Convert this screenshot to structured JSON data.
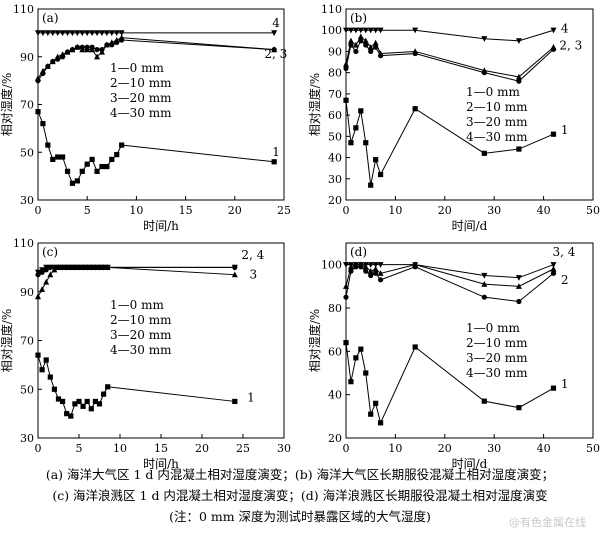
{
  "chart_data": [
    {
      "type": "line",
      "panel_label": "(a)",
      "xlabel": "时间/h",
      "ylabel": "相对湿度/%",
      "xlim": [
        0,
        25
      ],
      "ylim": [
        30,
        110
      ],
      "xticks": [
        0,
        5,
        10,
        15,
        20,
        25
      ],
      "yticks": [
        30,
        50,
        70,
        90,
        110
      ],
      "legend": [
        "1—0 mm",
        "2—10 mm",
        "3—20 mm",
        "4—30 mm"
      ],
      "series": [
        {
          "name": "1",
          "marker": "square",
          "x": [
            0,
            0.5,
            1,
            1.5,
            2,
            2.5,
            3,
            3.5,
            4,
            4.5,
            5,
            5.5,
            6,
            6.5,
            7,
            7.5,
            8,
            8.5,
            24
          ],
          "y": [
            67,
            62,
            53,
            47,
            48,
            48,
            42,
            37,
            38,
            42,
            45,
            47,
            42,
            44,
            44,
            47,
            49,
            53,
            46
          ]
        },
        {
          "name": "2",
          "marker": "circle",
          "x": [
            0,
            0.5,
            1,
            1.5,
            2,
            2.5,
            3,
            3.5,
            4,
            4.5,
            5,
            5.5,
            6,
            6.5,
            7,
            7.5,
            8,
            8.5,
            24
          ],
          "y": [
            80,
            83,
            86,
            88,
            89,
            90,
            92,
            93,
            94,
            94,
            94,
            94,
            93,
            93,
            95,
            95,
            96,
            97,
            93
          ]
        },
        {
          "name": "3",
          "marker": "triangle-up",
          "x": [
            0,
            0.5,
            1,
            1.5,
            2,
            2.5,
            3,
            3.5,
            4,
            4.5,
            5,
            5.5,
            6,
            6.5,
            7,
            7.5,
            8,
            8.5,
            24
          ],
          "y": [
            81,
            84,
            86,
            88,
            90,
            91,
            92,
            93,
            94,
            93,
            93,
            93,
            90,
            92,
            95,
            96,
            97,
            98,
            93
          ]
        },
        {
          "name": "4",
          "marker": "triangle-down",
          "x": [
            0,
            0.5,
            1,
            1.5,
            2,
            2.5,
            3,
            3.5,
            4,
            4.5,
            5,
            5.5,
            6,
            6.5,
            7,
            7.5,
            8,
            8.5,
            24
          ],
          "y": [
            100,
            100,
            100,
            100,
            100,
            100,
            100,
            100,
            100,
            100,
            100,
            100,
            100,
            100,
            100,
            100,
            100,
            100,
            100
          ]
        }
      ],
      "curve_labels": [
        {
          "text": "4",
          "x": 23.8,
          "y": 102.5
        },
        {
          "text": "2, 3",
          "x": 23.0,
          "y": 89.5
        },
        {
          "text": "1",
          "x": 23.8,
          "y": 48.5
        }
      ]
    },
    {
      "type": "line",
      "panel_label": "(b)",
      "xlabel": "时间/d",
      "ylabel": "相对湿度/%",
      "xlim": [
        0,
        50
      ],
      "ylim": [
        20,
        110
      ],
      "xticks": [
        0,
        10,
        20,
        30,
        40,
        50
      ],
      "yticks": [
        20,
        30,
        40,
        50,
        60,
        70,
        80,
        90,
        100,
        110
      ],
      "legend": [
        "1—0 mm",
        "2—10 mm",
        "3—20 mm",
        "4—30 mm"
      ],
      "series": [
        {
          "name": "1",
          "marker": "square",
          "x": [
            0,
            1,
            2,
            3,
            4,
            5,
            6,
            7,
            14,
            28,
            35,
            42
          ],
          "y": [
            67,
            47,
            54,
            62,
            47,
            27,
            39,
            32,
            63,
            42,
            44,
            51
          ]
        },
        {
          "name": "2",
          "marker": "circle",
          "x": [
            0,
            1,
            2,
            3,
            4,
            5,
            6,
            7,
            14,
            28,
            35,
            42
          ],
          "y": [
            82,
            93,
            90,
            95,
            93,
            90,
            92,
            88,
            89,
            80,
            76,
            91
          ]
        },
        {
          "name": "3",
          "marker": "triangle-up",
          "x": [
            0,
            1,
            2,
            3,
            4,
            5,
            6,
            7,
            14,
            28,
            35,
            42
          ],
          "y": [
            84,
            95,
            93,
            97,
            95,
            92,
            94,
            89,
            90,
            81,
            78,
            92
          ]
        },
        {
          "name": "4",
          "marker": "triangle-down",
          "x": [
            0,
            1,
            2,
            3,
            4,
            5,
            6,
            7,
            14,
            28,
            35,
            42
          ],
          "y": [
            100,
            100,
            100,
            100,
            100,
            100,
            100,
            100,
            100,
            96,
            95,
            100
          ]
        }
      ],
      "curve_labels": [
        {
          "text": "4",
          "x": 43.5,
          "y": 99
        },
        {
          "text": "2, 3",
          "x": 43.2,
          "y": 91
        },
        {
          "text": "1",
          "x": 43.5,
          "y": 51
        }
      ]
    },
    {
      "type": "line",
      "panel_label": "(c)",
      "xlabel": "时间/h",
      "ylabel": "相对湿度/%",
      "xlim": [
        0,
        30
      ],
      "ylim": [
        30,
        110
      ],
      "xticks": [
        0,
        5,
        10,
        15,
        20,
        25,
        30
      ],
      "yticks": [
        30,
        50,
        70,
        90,
        110
      ],
      "legend": [
        "1—0 mm",
        "2—10 mm",
        "3—20 mm",
        "4—30 mm"
      ],
      "series": [
        {
          "name": "1",
          "marker": "square",
          "x": [
            0,
            0.5,
            1,
            1.5,
            2,
            2.5,
            3,
            3.5,
            4,
            4.5,
            5,
            5.5,
            6,
            6.5,
            7,
            7.5,
            8,
            8.5,
            24
          ],
          "y": [
            64,
            58,
            62,
            55,
            50,
            46,
            45,
            40,
            39,
            44,
            45,
            43,
            45,
            42,
            45,
            44,
            48,
            51,
            45
          ]
        },
        {
          "name": "2",
          "marker": "circle",
          "x": [
            0,
            0.5,
            1,
            1.5,
            2,
            2.5,
            3,
            3.5,
            4,
            4.5,
            5,
            5.5,
            6,
            6.5,
            7,
            7.5,
            8,
            8.5,
            24
          ],
          "y": [
            97,
            98,
            99,
            100,
            100,
            100,
            100,
            100,
            100,
            100,
            100,
            100,
            100,
            100,
            100,
            100,
            100,
            100,
            100
          ]
        },
        {
          "name": "3",
          "marker": "triangle-up",
          "x": [
            0,
            0.5,
            1,
            1.5,
            2,
            2.5,
            3,
            3.5,
            4,
            4.5,
            5,
            5.5,
            6,
            6.5,
            7,
            7.5,
            8,
            8.5,
            24
          ],
          "y": [
            88,
            91,
            94,
            97,
            99,
            100,
            100,
            100,
            100,
            100,
            100,
            100,
            100,
            100,
            100,
            100,
            100,
            100,
            97
          ]
        },
        {
          "name": "4",
          "marker": "triangle-down",
          "x": [
            0,
            0.5,
            1,
            1.5,
            2,
            2.5,
            3,
            3.5,
            4,
            4.5,
            5,
            5.5,
            6,
            6.5,
            7,
            7.5,
            8,
            8.5,
            24
          ],
          "y": [
            98,
            99,
            100,
            100,
            100,
            100,
            100,
            100,
            100,
            100,
            100,
            100,
            100,
            100,
            100,
            100,
            100,
            100,
            100
          ]
        }
      ],
      "curve_labels": [
        {
          "text": "2, 4",
          "x": 24.8,
          "y": 103.5
        },
        {
          "text": "3",
          "x": 25.8,
          "y": 95.5
        },
        {
          "text": "1",
          "x": 25.5,
          "y": 45
        }
      ]
    },
    {
      "type": "line",
      "panel_label": "(d)",
      "xlabel": "时间/d",
      "ylabel": "相对湿度/%",
      "xlim": [
        0,
        50
      ],
      "ylim": [
        20,
        110
      ],
      "xticks": [
        0,
        10,
        20,
        30,
        40,
        50
      ],
      "yticks": [
        20,
        40,
        60,
        80,
        100
      ],
      "legend": [
        "1—0 mm",
        "2—10 mm",
        "3—20 mm",
        "4—30 mm"
      ],
      "series": [
        {
          "name": "1",
          "marker": "square",
          "x": [
            0,
            1,
            2,
            3,
            4,
            5,
            6,
            7,
            14,
            28,
            35,
            42
          ],
          "y": [
            64,
            46,
            57,
            61,
            50,
            31,
            36,
            27,
            62,
            37,
            34,
            43
          ]
        },
        {
          "name": "2",
          "marker": "circle",
          "x": [
            0,
            1,
            2,
            3,
            4,
            5,
            6,
            7,
            14,
            28,
            35,
            42
          ],
          "y": [
            85,
            97,
            99,
            99,
            97,
            95,
            96,
            93,
            99,
            85,
            83,
            96
          ]
        },
        {
          "name": "3",
          "marker": "triangle-up",
          "x": [
            0,
            1,
            2,
            3,
            4,
            5,
            6,
            7,
            14,
            28,
            35,
            42
          ],
          "y": [
            90,
            99,
            100,
            100,
            99,
            97,
            98,
            96,
            100,
            91,
            90,
            98
          ]
        },
        {
          "name": "4",
          "marker": "triangle-down",
          "x": [
            0,
            1,
            2,
            3,
            4,
            5,
            6,
            7,
            14,
            28,
            35,
            42
          ],
          "y": [
            100,
            100,
            100,
            100,
            100,
            100,
            100,
            100,
            100,
            95,
            94,
            100
          ]
        }
      ],
      "curve_labels": [
        {
          "text": "3, 4",
          "x": 41.8,
          "y": 104
        },
        {
          "text": "2",
          "x": 43.5,
          "y": 91
        },
        {
          "text": "1",
          "x": 43.5,
          "y": 43
        }
      ]
    }
  ],
  "caption": {
    "line1": "(a) 海洋大气区 1 d 内混凝土相对湿度演变；(b) 海洋大气区长期服役混凝土相对湿度演变；",
    "line2": "(c) 海洋浪溅区 1 d 内混凝土相对湿度演变；(d) 海洋浪溅区长期服役混凝土相对湿度演变",
    "line3": "(注：0 mm 深度为测试时暴露区域的大气湿度)"
  },
  "watermark": "@有色金属在线",
  "colors": {
    "line": "#000000",
    "background": "#ffffff",
    "watermark": "#c9c9c9"
  }
}
